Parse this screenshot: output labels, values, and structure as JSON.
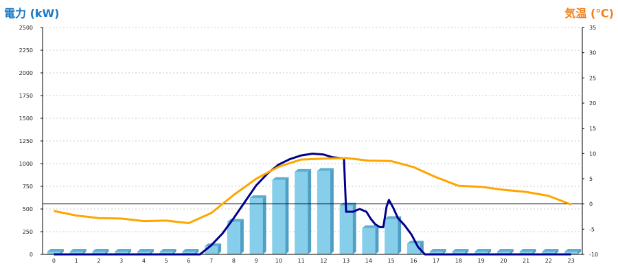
{
  "chart_data": {
    "type": "bar",
    "title": "",
    "left_axis_label": "電力 (kW)",
    "right_axis_label": "気温 (℃)",
    "categories": [
      "0",
      "1",
      "2",
      "3",
      "4",
      "5",
      "6",
      "7",
      "8",
      "9",
      "10",
      "11",
      "12",
      "13",
      "14",
      "15",
      "16",
      "17",
      "18",
      "19",
      "20",
      "21",
      "22",
      "23"
    ],
    "left_ticks": [
      "0",
      "250",
      "500",
      "750",
      "1000",
      "1250",
      "1500",
      "1750",
      "2000",
      "2250",
      "2500"
    ],
    "right_ticks": [
      "-10",
      "-5",
      "0",
      "5",
      "10",
      "15",
      "20",
      "25",
      "30",
      "35"
    ],
    "ylim_left": [
      0,
      2500
    ],
    "ylim_right": [
      -10,
      35
    ],
    "grid": true,
    "bar_color": "#87ceeb",
    "power_line_color": "#00008b",
    "temp_line_color": "#ffa500",
    "series": [
      {
        "type": "bar",
        "axis": "left",
        "values": [
          0,
          0,
          0,
          0,
          0,
          0,
          0,
          90,
          360,
          620,
          820,
          910,
          920,
          540,
          290,
          390,
          120,
          0,
          0,
          0,
          0,
          0,
          0,
          0
        ]
      },
      {
        "type": "line",
        "axis": "left",
        "x": [
          0,
          1,
          2,
          3,
          4,
          5,
          6,
          6.5,
          7,
          7.5,
          8,
          8.5,
          9,
          9.5,
          10,
          10.5,
          11,
          11.5,
          12,
          12.4,
          12.8,
          12.9,
          13,
          13.3,
          13.6,
          13.9,
          14.1,
          14.3,
          14.5,
          14.65,
          14.8,
          14.9,
          15.1,
          15.3,
          15.6,
          15.9,
          16.2,
          16.5,
          17,
          18,
          19,
          20,
          21,
          22,
          23
        ],
        "values": [
          0,
          0,
          0,
          0,
          0,
          0,
          0,
          0,
          100,
          230,
          400,
          580,
          760,
          890,
          990,
          1050,
          1090,
          1110,
          1100,
          1070,
          1060,
          1060,
          470,
          470,
          500,
          470,
          390,
          330,
          300,
          300,
          530,
          600,
          510,
          400,
          320,
          220,
          80,
          0,
          0,
          0,
          0,
          0,
          0,
          0,
          0
        ]
      },
      {
        "type": "line",
        "axis": "right",
        "values": [
          -1.4,
          -2.3,
          -2.8,
          -2.9,
          -3.4,
          -3.3,
          -3.8,
          -1.8,
          1.8,
          5.0,
          7.4,
          8.8,
          9.0,
          9.1,
          8.6,
          8.5,
          7.3,
          5.3,
          3.6,
          3.4,
          2.8,
          2.4,
          1.6,
          -0.1
        ]
      }
    ]
  }
}
